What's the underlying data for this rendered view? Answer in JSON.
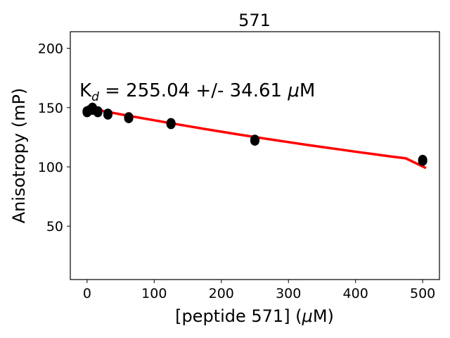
{
  "chart_data": {
    "type": "scatter",
    "title": "571",
    "xlabel_prefix": "[peptide 571] (",
    "xlabel_mu": "μ",
    "xlabel_suffix": "M)",
    "ylabel": "Anisotropy (mP)",
    "annotation": {
      "k": "K",
      "sub": "d",
      "value": " = 255.04 +/- 34.61 ",
      "mu": "μ",
      "unit": "M"
    },
    "xlim": [
      -25,
      525
    ],
    "ylim": [
      5,
      214
    ],
    "x_ticks": [
      0,
      100,
      200,
      300,
      400,
      500
    ],
    "y_ticks": [
      50,
      100,
      150,
      200
    ],
    "grid": false,
    "points": [
      {
        "x": 0,
        "y": 146
      },
      {
        "x": 0,
        "y": 147
      },
      {
        "x": 4,
        "y": 148
      },
      {
        "x": 8,
        "y": 150
      },
      {
        "x": 8,
        "y": 148
      },
      {
        "x": 16,
        "y": 147
      },
      {
        "x": 16,
        "y": 146
      },
      {
        "x": 31,
        "y": 145
      },
      {
        "x": 31,
        "y": 144
      },
      {
        "x": 62,
        "y": 142
      },
      {
        "x": 62,
        "y": 141
      },
      {
        "x": 125,
        "y": 137
      },
      {
        "x": 125,
        "y": 136
      },
      {
        "x": 250,
        "y": 123
      },
      {
        "x": 250,
        "y": 122
      },
      {
        "x": 500,
        "y": 106
      },
      {
        "x": 500,
        "y": 105
      }
    ],
    "fit": {
      "x": [
        0,
        25,
        50,
        75,
        100,
        125,
        150,
        175,
        200,
        225,
        250,
        275,
        300,
        325,
        350,
        375,
        400,
        425,
        450,
        475,
        505
      ],
      "y": [
        150.0,
        147.0,
        144.3,
        141.8,
        139.3,
        136.8,
        134.4,
        132.0,
        129.7,
        127.4,
        125.2,
        123.0,
        120.9,
        118.8,
        116.8,
        114.8,
        112.8,
        110.9,
        109.0,
        107.2,
        99.0
      ]
    },
    "colors": {
      "points": "#000000",
      "fit": "#ff0000"
    }
  }
}
